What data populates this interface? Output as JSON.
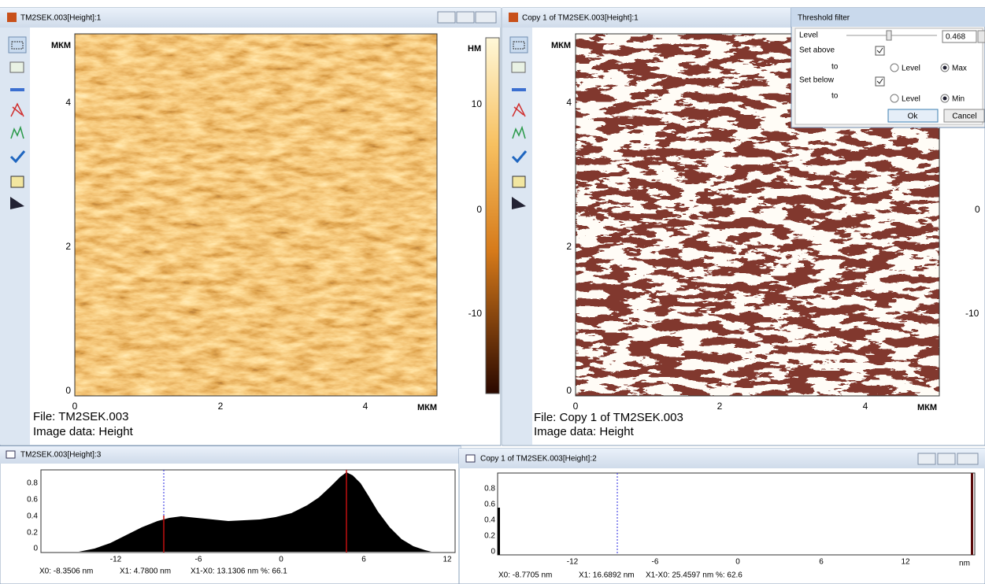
{
  "window_1": {
    "title": "TM2SEK.003[Height]:1",
    "y_axis_unit": "МКМ",
    "y_ticks": [
      "4",
      "2",
      "0"
    ],
    "x_ticks": [
      "0",
      "2",
      "4"
    ],
    "x_axis_unit": "МКМ",
    "colorbar_unit": "НМ",
    "colorbar_ticks": [
      "10",
      "0",
      "-10"
    ],
    "file": "File: TM2SEK.003",
    "image_data": "Image data: Height"
  },
  "window_2": {
    "title": "Copy 1 of TM2SEK.003[Height]:1",
    "y_axis_unit": "МКМ",
    "y_ticks": [
      "4",
      "2",
      "0"
    ],
    "x_ticks": [
      "0",
      "2",
      "4"
    ],
    "x_axis_unit": "МКМ",
    "colorbar_ticks": [
      "0",
      "-10"
    ],
    "file": "File: Copy 1 of TM2SEK.003",
    "image_data": "Image data: Height"
  },
  "threshold_dialog": {
    "title": "Threshold filter",
    "level_label": "Level",
    "level_value": "0.468",
    "set_above": "Set above",
    "above_to": "to",
    "above_level": "Level",
    "above_max": "Max",
    "set_below": "Set below",
    "below_to": "to",
    "below_level": "Level",
    "below_min": "Min",
    "ok": "Ok",
    "cancel": "Cancel"
  },
  "histogram_1": {
    "title": "TM2SEK.003[Height]:3",
    "y_ticks": [
      "0.8",
      "0.6",
      "0.4",
      "0.2",
      "0"
    ],
    "x_ticks": [
      "-12",
      "-6",
      "0",
      "6",
      "12"
    ],
    "x0": "X0: -8.3506 nm",
    "x1": "X1: 4.7800 nm",
    "diff": "X1-X0: 13.1306 nm %: 66.1"
  },
  "histogram_2": {
    "title": "Copy 1 of TM2SEK.003[Height]:2",
    "y_ticks": [
      "0.8",
      "0.6",
      "0.4",
      "0.2",
      "0"
    ],
    "x_ticks": [
      "-12",
      "-6",
      "0",
      "6",
      "12"
    ],
    "x_unit": "nm",
    "x0": "X0: -8.7705 nm",
    "x1": "X1: 16.6892 nm",
    "diff": "X1-X0: 25.4597 nm %: 62.6"
  }
}
